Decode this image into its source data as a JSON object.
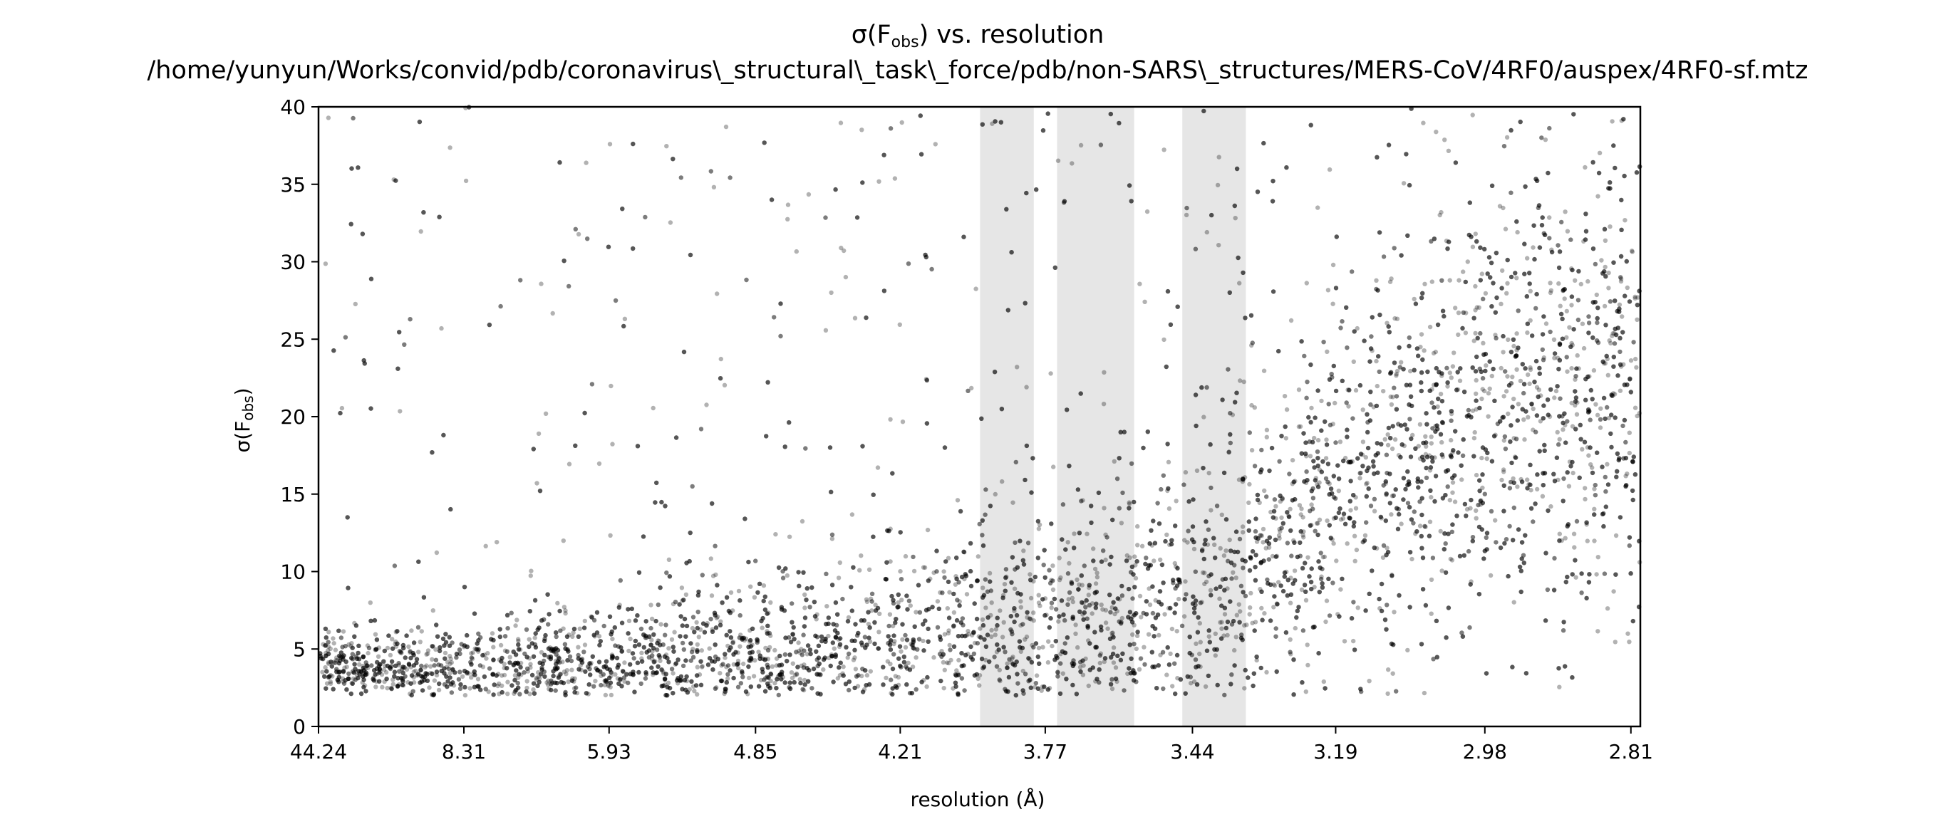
{
  "chart_data": {
    "type": "scatter",
    "title": "σ(F",
    "title_subscript": "obs",
    "title_suffix": ") vs. resolution",
    "subtitle": "/home/yunyun/Works/convid/pdb/coronavirus\\_structural\\_task\\_force/pdb/non-SARS\\_structures/MERS-CoV/4RF0/auspex/4RF0-sf.mtz",
    "xlabel": "resolution (Å)",
    "ylabel": "σ(F",
    "ylabel_subscript": "obs",
    "ylabel_suffix": ")",
    "x_scale": "reciprocal-squared resolution (1/d²)",
    "xlim_resolution": [
      44.24,
      2.8
    ],
    "ylim": [
      0,
      40
    ],
    "x_ticks": [
      "44.24",
      "8.31",
      "5.93",
      "4.85",
      "4.21",
      "3.77",
      "3.44",
      "3.19",
      "2.98",
      "2.81"
    ],
    "y_ticks": [
      "0",
      "5",
      "10",
      "15",
      "20",
      "25",
      "30",
      "35",
      "40"
    ],
    "grid": false,
    "legend": "none",
    "marker_color": "#000000",
    "marker_alpha": 0.3,
    "shaded_resolution_bands": [
      {
        "from": 3.95,
        "to": 3.8,
        "color": "#e6e6e6"
      },
      {
        "from": 3.74,
        "to": 3.56,
        "color": "#e6e6e6"
      },
      {
        "from": 3.46,
        "to": 3.34,
        "color": "#e6e6e6"
      }
    ],
    "point_density_trend": [
      {
        "resolution": 44.24,
        "typical_sigma": 4.0
      },
      {
        "resolution": 8.31,
        "typical_sigma": 3.5
      },
      {
        "resolution": 5.93,
        "typical_sigma": 3.6
      },
      {
        "resolution": 4.85,
        "typical_sigma": 4.0
      },
      {
        "resolution": 4.21,
        "typical_sigma": 4.3
      },
      {
        "resolution": 3.77,
        "typical_sigma": 5.0
      },
      {
        "resolution": 3.44,
        "typical_sigma": 7.0
      },
      {
        "resolution": 3.19,
        "typical_sigma": 15.0
      },
      {
        "resolution": 2.98,
        "typical_sigma": 21.0
      },
      {
        "resolution": 2.81,
        "typical_sigma": 22.0
      }
    ]
  }
}
